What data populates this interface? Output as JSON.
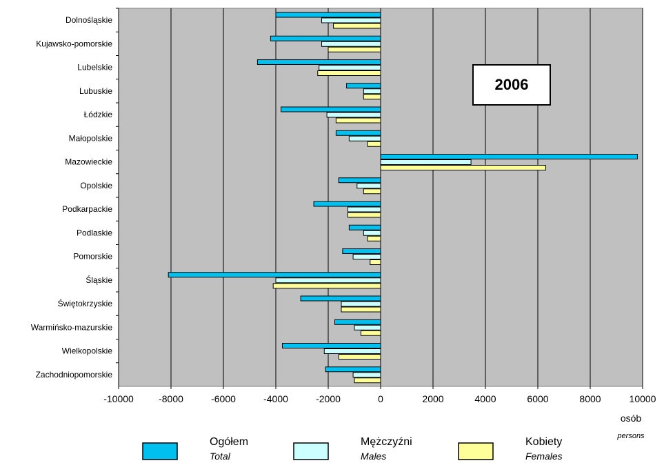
{
  "chart_data": {
    "type": "bar",
    "orientation": "horizontal",
    "annotation": "2006",
    "unit_label": "osób",
    "unit_label_en": "persons",
    "xlim": [
      -10000,
      10000
    ],
    "x_ticks": [
      "-10000",
      "-8000",
      "-6000",
      "-4000",
      "-2000",
      "0",
      "2000",
      "4000",
      "6000",
      "8000",
      "10000"
    ],
    "grid": true,
    "legend_position": "bottom",
    "categories": [
      "Dolnośląskie",
      "Kujawsko-pomorskie",
      "Lubelskie",
      "Lubuskie",
      "Łódzkie",
      "Małopolskie",
      "Mazowieckie",
      "Opolskie",
      "Podkarpackie",
      "Podlaskie",
      "Pomorskie",
      "Śląskie",
      "Świętokrzyskie",
      "Warmińsko-mazurskie",
      "Wielkopolskie",
      "Zachodniopomorskie"
    ],
    "series": [
      {
        "name": "Ogółem",
        "name_en": "Total",
        "color": "#00c0f0",
        "values": [
          -4000,
          -4200,
          -4700,
          -1300,
          -3800,
          -1700,
          9800,
          -1600,
          -2550,
          -1200,
          -1450,
          -8100,
          -3050,
          -1750,
          -3750,
          -2100
        ]
      },
      {
        "name": "Mężczyźni",
        "name_en": "Males",
        "color": "#ccffff",
        "values": [
          -2250,
          -2250,
          -2350,
          -650,
          -2050,
          -1200,
          3450,
          -900,
          -1250,
          -650,
          -1050,
          -4000,
          -1500,
          -1000,
          -2150,
          -1050
        ]
      },
      {
        "name": "Kobiety",
        "name_en": "Females",
        "color": "#ffff99",
        "values": [
          -1800,
          -2000,
          -2400,
          -650,
          -1700,
          -500,
          6300,
          -650,
          -1250,
          -500,
          -400,
          -4100,
          -1500,
          -750,
          -1600,
          -1000
        ]
      }
    ]
  }
}
